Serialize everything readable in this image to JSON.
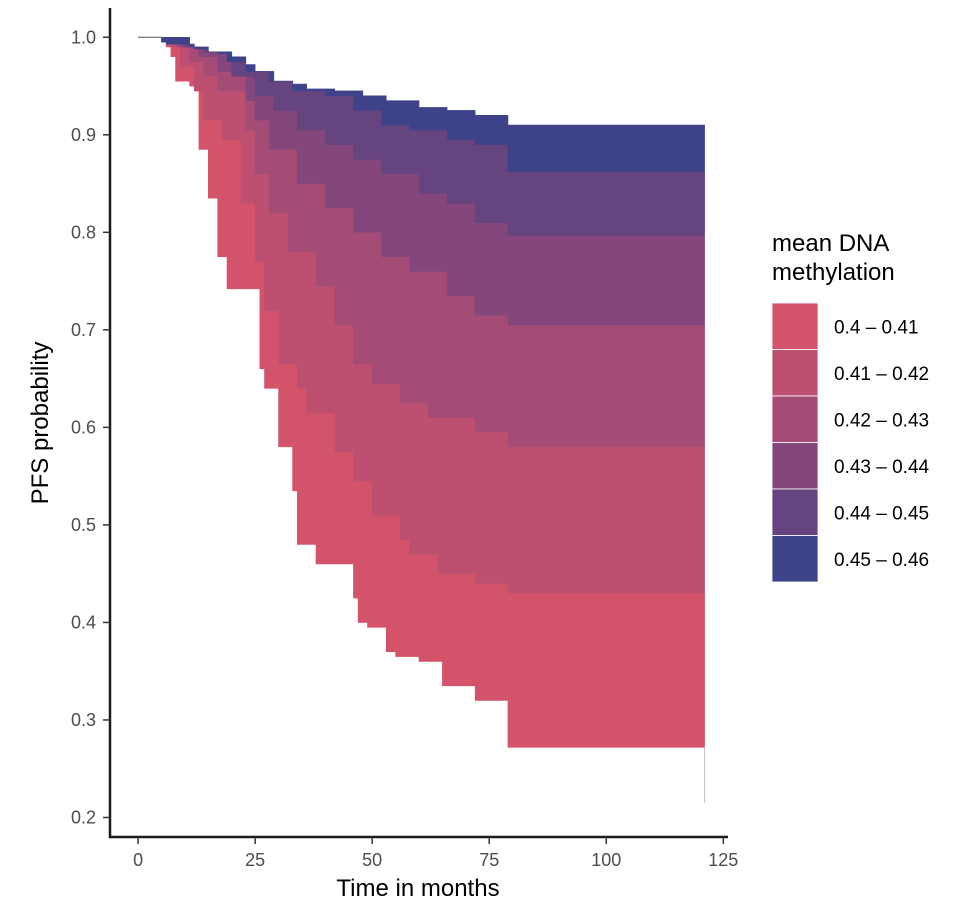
{
  "chart_data": {
    "type": "area",
    "xlabel": "Time in months",
    "ylabel": "PFS probability",
    "xlim": [
      -6,
      126
    ],
    "ylim": [
      0.18,
      1.03
    ],
    "x_ticks": [
      0,
      25,
      50,
      75,
      100,
      125
    ],
    "y_ticks": [
      0.2,
      0.3,
      0.4,
      0.5,
      0.6,
      0.7,
      0.8,
      0.9,
      1.0
    ],
    "x_tick_labels": [
      "0",
      "25",
      "50",
      "75",
      "100",
      "125"
    ],
    "y_tick_labels": [
      "0.2",
      "0.3",
      "0.4",
      "0.5",
      "0.6",
      "0.7",
      "0.8",
      "0.9",
      "1.0"
    ],
    "grid": false,
    "legend": {
      "title": "mean DNA methylation",
      "title_lines": [
        "mean DNA",
        "methylation"
      ],
      "placement": "right",
      "entries": [
        "0.4 – 0.41",
        "0.41 – 0.42",
        "0.42 – 0.43",
        "0.43 – 0.44",
        "0.44 – 0.45",
        "0.45 – 0.46"
      ]
    },
    "colors": [
      "#d3546a",
      "#bd5071",
      "#a44c76",
      "#84477b",
      "#65447f",
      "#3e4389"
    ],
    "series": [
      {
        "name": "0.4 – 0.41",
        "steps": [
          [
            0,
            1.0
          ],
          [
            5,
            0.995
          ],
          [
            6,
            0.99
          ],
          [
            7,
            0.98
          ],
          [
            8,
            0.955
          ],
          [
            11,
            0.95
          ],
          [
            13,
            0.885
          ],
          [
            15,
            0.835
          ],
          [
            17,
            0.775
          ],
          [
            19,
            0.742
          ],
          [
            26,
            0.66
          ],
          [
            27,
            0.64
          ],
          [
            30,
            0.58
          ],
          [
            33,
            0.535
          ],
          [
            34,
            0.48
          ],
          [
            38,
            0.46
          ],
          [
            46,
            0.425
          ],
          [
            47,
            0.4
          ],
          [
            49,
            0.395
          ],
          [
            53,
            0.37
          ],
          [
            55,
            0.365
          ],
          [
            60,
            0.36
          ],
          [
            65,
            0.335
          ],
          [
            72,
            0.32
          ],
          [
            79,
            0.272
          ]
        ],
        "end_x": 121,
        "tail": [
          121,
          0.215
        ]
      },
      {
        "name": "0.41 – 0.42",
        "steps": [
          [
            0,
            1.0
          ],
          [
            7,
            0.99
          ],
          [
            9,
            0.97
          ],
          [
            12,
            0.945
          ],
          [
            14,
            0.915
          ],
          [
            18,
            0.895
          ],
          [
            22,
            0.83
          ],
          [
            25,
            0.77
          ],
          [
            27,
            0.72
          ],
          [
            30,
            0.665
          ],
          [
            34,
            0.64
          ],
          [
            36,
            0.615
          ],
          [
            42,
            0.575
          ],
          [
            46,
            0.545
          ],
          [
            50,
            0.51
          ],
          [
            56,
            0.485
          ],
          [
            58,
            0.47
          ],
          [
            64,
            0.45
          ],
          [
            72,
            0.44
          ],
          [
            79,
            0.43
          ]
        ],
        "end_x": 121
      },
      {
        "name": "0.42 – 0.43",
        "steps": [
          [
            0,
            1.0
          ],
          [
            8,
            0.99
          ],
          [
            11,
            0.975
          ],
          [
            14,
            0.96
          ],
          [
            17,
            0.945
          ],
          [
            23,
            0.905
          ],
          [
            25,
            0.86
          ],
          [
            28,
            0.82
          ],
          [
            32,
            0.78
          ],
          [
            38,
            0.745
          ],
          [
            42,
            0.705
          ],
          [
            46,
            0.665
          ],
          [
            50,
            0.645
          ],
          [
            56,
            0.625
          ],
          [
            62,
            0.61
          ],
          [
            72,
            0.595
          ],
          [
            79,
            0.58
          ]
        ],
        "end_x": 121
      },
      {
        "name": "0.43 – 0.44",
        "steps": [
          [
            0,
            1.0
          ],
          [
            9,
            0.99
          ],
          [
            13,
            0.98
          ],
          [
            17,
            0.965
          ],
          [
            23,
            0.935
          ],
          [
            25,
            0.915
          ],
          [
            28,
            0.885
          ],
          [
            34,
            0.85
          ],
          [
            40,
            0.825
          ],
          [
            46,
            0.8
          ],
          [
            52,
            0.775
          ],
          [
            58,
            0.76
          ],
          [
            66,
            0.735
          ],
          [
            72,
            0.715
          ],
          [
            79,
            0.705
          ]
        ],
        "end_x": 121
      },
      {
        "name": "0.44 – 0.45",
        "steps": [
          [
            0,
            1.0
          ],
          [
            10,
            0.99
          ],
          [
            14,
            0.985
          ],
          [
            20,
            0.96
          ],
          [
            25,
            0.94
          ],
          [
            29,
            0.925
          ],
          [
            34,
            0.905
          ],
          [
            40,
            0.89
          ],
          [
            46,
            0.875
          ],
          [
            52,
            0.86
          ],
          [
            60,
            0.84
          ],
          [
            66,
            0.83
          ],
          [
            72,
            0.81
          ],
          [
            79,
            0.797
          ]
        ],
        "end_x": 121
      },
      {
        "name": "0.45 – 0.46",
        "steps": [
          [
            0,
            1.0
          ],
          [
            11,
            0.99
          ],
          [
            15,
            0.985
          ],
          [
            20,
            0.98
          ],
          [
            23,
            0.965
          ],
          [
            28,
            0.955
          ],
          [
            33,
            0.945
          ],
          [
            40,
            0.94
          ],
          [
            46,
            0.925
          ],
          [
            52,
            0.91
          ],
          [
            58,
            0.905
          ],
          [
            66,
            0.895
          ],
          [
            72,
            0.89
          ],
          [
            79,
            0.862
          ]
        ],
        "end_x": 121
      }
    ],
    "top_boundary": {
      "steps": [
        [
          0,
          1.0
        ],
        [
          5,
          0.995
        ],
        [
          6,
          0.993
        ],
        [
          12,
          0.988
        ],
        [
          15,
          0.985
        ],
        [
          17,
          0.983
        ],
        [
          19,
          0.975
        ],
        [
          23,
          0.972
        ],
        [
          25,
          0.965
        ],
        [
          29,
          0.955
        ],
        [
          33,
          0.952
        ],
        [
          36,
          0.947
        ],
        [
          42,
          0.945
        ],
        [
          48,
          0.94
        ],
        [
          53,
          0.935
        ],
        [
          60,
          0.928
        ],
        [
          66,
          0.925
        ],
        [
          72,
          0.92
        ],
        [
          79,
          0.91
        ]
      ],
      "end_x": 121
    }
  }
}
